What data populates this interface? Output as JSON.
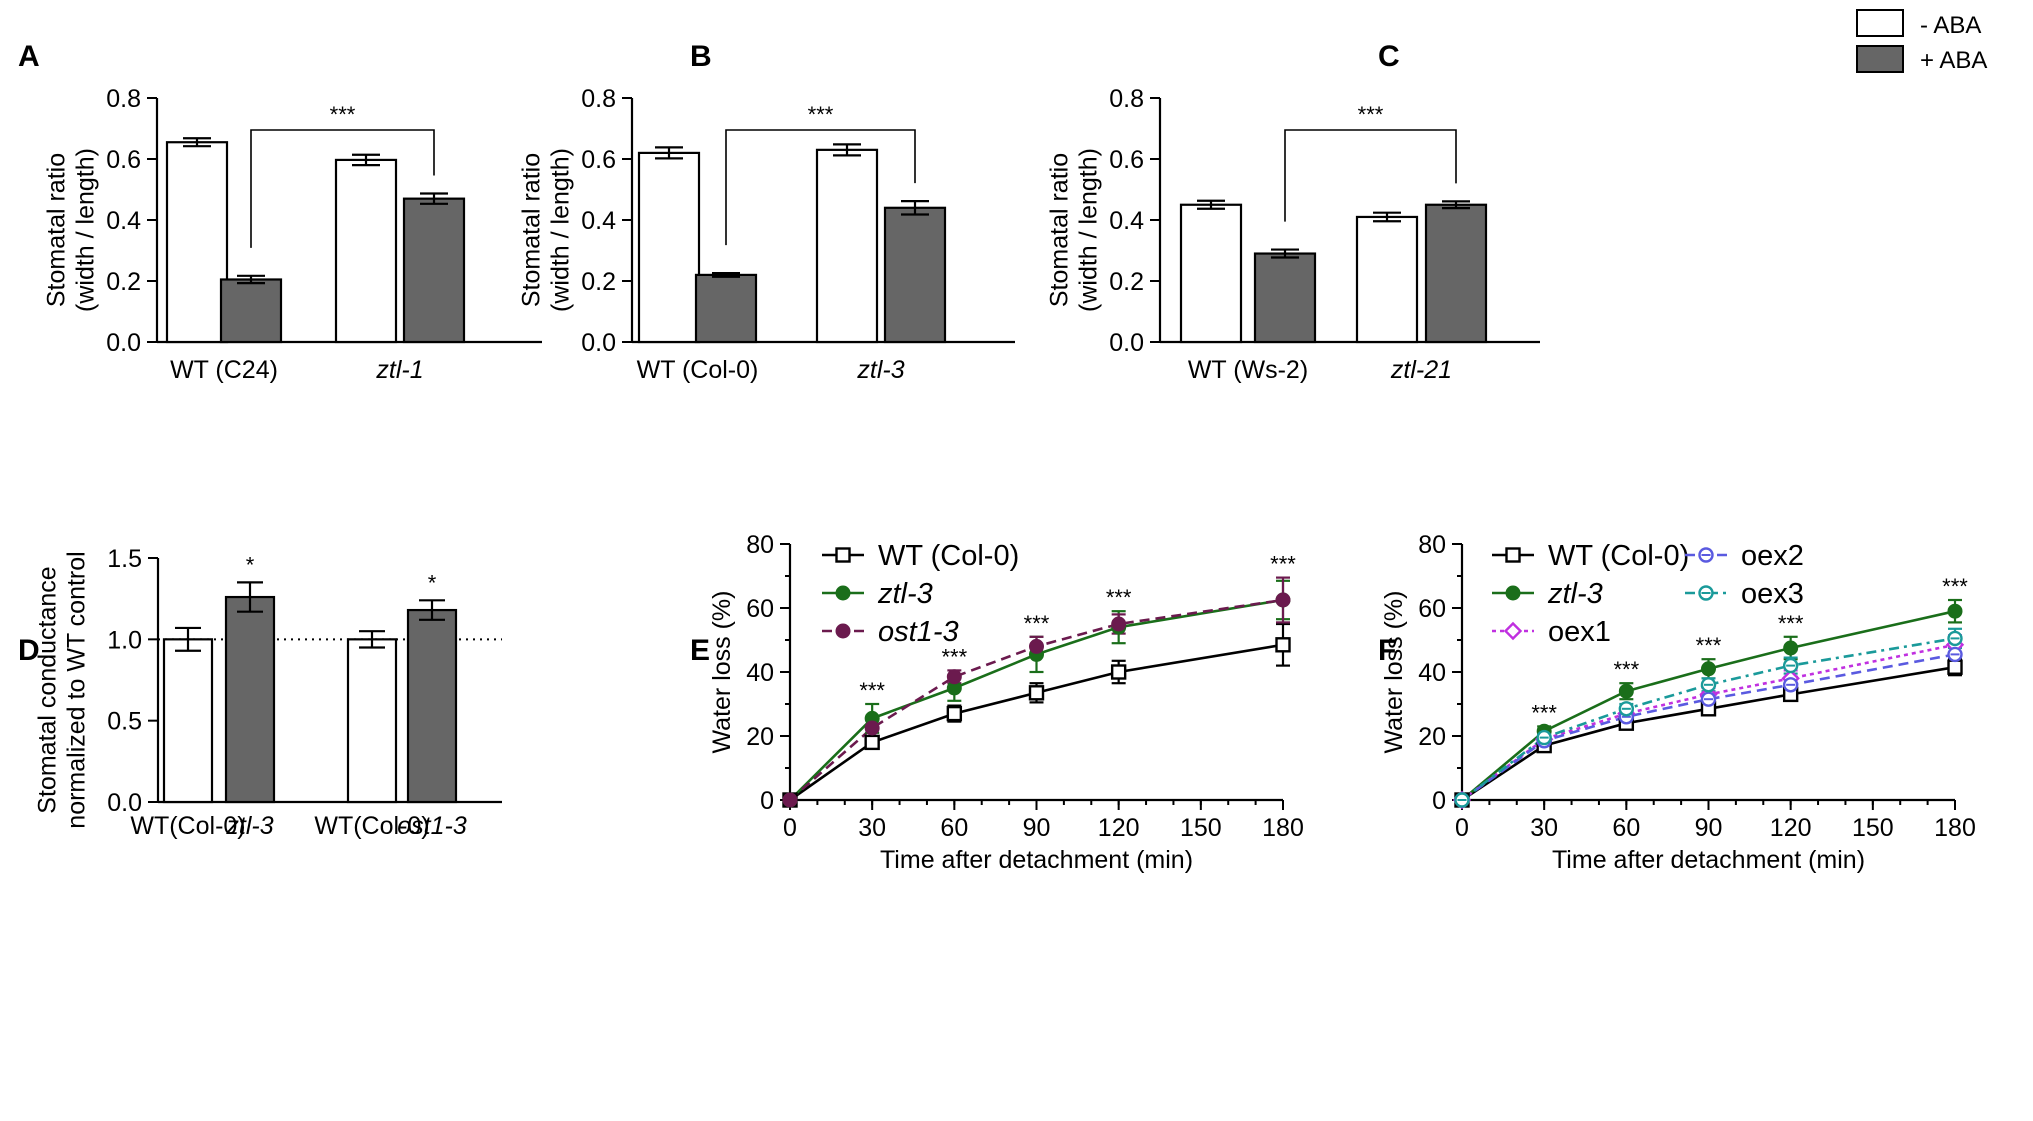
{
  "legend": {
    "minus_aba": "- ABA",
    "plus_aba": "+ ABA",
    "colors": {
      "minus_aba": "#ffffff",
      "plus_aba": "#666666"
    }
  },
  "chart_data": [
    {
      "panel": "A",
      "type": "bar",
      "ylabel_line1": "Stomatal ratio",
      "ylabel_line2": "(width / length)",
      "ylim": [
        0,
        0.8
      ],
      "yticks": [
        "0.0",
        "0.2",
        "0.4",
        "0.6",
        "0.8"
      ],
      "groups": [
        "WT (C24)",
        "ztl-1"
      ],
      "series": [
        {
          "name": "- ABA",
          "values": [
            0.655,
            0.597
          ],
          "errors": [
            0.013,
            0.017
          ]
        },
        {
          "name": "+ ABA",
          "values": [
            0.205,
            0.47
          ],
          "errors": [
            0.012,
            0.017
          ]
        }
      ],
      "significance": "***"
    },
    {
      "panel": "B",
      "type": "bar",
      "ylabel_line1": "Stomatal ratio",
      "ylabel_line2": "(width / length)",
      "ylim": [
        0,
        0.8
      ],
      "yticks": [
        "0.0",
        "0.2",
        "0.4",
        "0.6",
        "0.8"
      ],
      "groups": [
        "WT (Col-0)",
        "ztl-3"
      ],
      "series": [
        {
          "name": "- ABA",
          "values": [
            0.62,
            0.63
          ],
          "errors": [
            0.018,
            0.018
          ]
        },
        {
          "name": "+ ABA",
          "values": [
            0.22,
            0.44
          ],
          "errors": [
            0.006,
            0.022
          ]
        }
      ],
      "significance": "***"
    },
    {
      "panel": "C",
      "type": "bar",
      "ylabel_line1": "Stomatal ratio",
      "ylabel_line2": "(width / length)",
      "ylim": [
        0,
        0.8
      ],
      "yticks": [
        "0.0",
        "0.2",
        "0.4",
        "0.6",
        "0.8"
      ],
      "groups": [
        "WT (Ws-2)",
        "ztl-21"
      ],
      "series": [
        {
          "name": "- ABA",
          "values": [
            0.45,
            0.41
          ],
          "errors": [
            0.013,
            0.014
          ]
        },
        {
          "name": "+ ABA",
          "values": [
            0.29,
            0.45
          ],
          "errors": [
            0.013,
            0.011
          ]
        }
      ],
      "significance": "***"
    },
    {
      "panel": "D",
      "type": "bar",
      "ylabel_line1": "Stomatal conductance",
      "ylabel_line2": "normalized to WT control",
      "ylim": [
        0,
        1.5
      ],
      "yticks": [
        "0.0",
        "0.5",
        "1.0",
        "1.5"
      ],
      "reference_line": 1.0,
      "bars": [
        {
          "label": "WT(Col-0)",
          "value": 1.0,
          "error": 0.07,
          "fill": "white",
          "sig": ""
        },
        {
          "label": "ztl-3",
          "value": 1.26,
          "error": 0.09,
          "fill": "gray",
          "sig": "*"
        },
        {
          "label": "WT(Col-0)",
          "value": 1.0,
          "error": 0.05,
          "fill": "white",
          "sig": ""
        },
        {
          "label": "ost1-3",
          "value": 1.18,
          "error": 0.06,
          "fill": "gray",
          "sig": "*"
        }
      ]
    },
    {
      "panel": "E",
      "type": "line",
      "xlabel": "Time after detachment (min)",
      "ylabel": "Water loss (%)",
      "x": [
        0,
        30,
        60,
        90,
        120,
        180
      ],
      "xlim": [
        0,
        180
      ],
      "ylim": [
        0,
        80
      ],
      "xticks": [
        "0",
        "30",
        "60",
        "90",
        "120",
        "150",
        "180"
      ],
      "yticks": [
        "0",
        "20",
        "40",
        "60",
        "80"
      ],
      "significance_x": [
        30,
        60,
        90,
        120,
        180
      ],
      "significance_label": "***",
      "series": [
        {
          "name": "WT (Col-0)",
          "values": [
            0,
            18,
            27,
            33.5,
            40,
            48.5
          ],
          "errors": [
            0,
            1.2,
            2.5,
            3,
            3.5,
            6.5
          ],
          "color": "#000000",
          "marker": "open-square",
          "dash": ""
        },
        {
          "name": "ztl-3",
          "values": [
            0,
            25.5,
            35,
            45.5,
            54,
            62.5
          ],
          "errors": [
            0,
            4.5,
            4,
            5.5,
            5,
            6
          ],
          "color": "#1a6e1a",
          "marker": "filled-circle",
          "dash": ""
        },
        {
          "name": "ost1-3",
          "values": [
            0,
            22.5,
            38.5,
            48,
            55,
            62.5
          ],
          "errors": [
            0,
            2.5,
            2,
            3,
            3,
            7
          ],
          "color": "#6b1a4e",
          "marker": "filled-circle",
          "dash": "10,6"
        }
      ]
    },
    {
      "panel": "F",
      "type": "line",
      "xlabel": "Time after detachment (min)",
      "ylabel": "Water loss (%)",
      "x": [
        0,
        30,
        60,
        90,
        120,
        180
      ],
      "xlim": [
        0,
        180
      ],
      "ylim": [
        0,
        80
      ],
      "xticks": [
        "0",
        "30",
        "60",
        "90",
        "120",
        "150",
        "180"
      ],
      "yticks": [
        "0",
        "20",
        "40",
        "60",
        "80"
      ],
      "significance_x": [
        30,
        60,
        90,
        120,
        180
      ],
      "significance_label": "***",
      "series": [
        {
          "name": "WT (Col-0)",
          "values": [
            0,
            17,
            24,
            28.5,
            33,
            41.5
          ],
          "errors": [
            0,
            1,
            1.2,
            1.5,
            1.5,
            2.5
          ],
          "color": "#000000",
          "marker": "open-square",
          "dash": ""
        },
        {
          "name": "ztl-3",
          "values": [
            0,
            21.5,
            34,
            41,
            47.5,
            59
          ],
          "errors": [
            0,
            1.5,
            2.5,
            3,
            3.5,
            3.5
          ],
          "color": "#1a6e1a",
          "marker": "filled-circle",
          "dash": ""
        },
        {
          "name": "oex1",
          "values": [
            0,
            19,
            27,
            33,
            38,
            48.5
          ],
          "errors": [
            0,
            1,
            1.5,
            2,
            2.5,
            3
          ],
          "color": "#c030e0",
          "marker": "open-diamond",
          "dash": "4,4"
        },
        {
          "name": "oex2",
          "values": [
            0,
            18.5,
            26,
            31.5,
            36,
            45.5
          ],
          "errors": [
            0,
            1,
            1.5,
            2,
            2.5,
            3
          ],
          "color": "#5a5ae0",
          "marker": "open-circle",
          "dash": "10,6"
        },
        {
          "name": "oex3",
          "values": [
            0,
            19.5,
            28.5,
            36,
            42,
            50.5
          ],
          "errors": [
            0,
            1,
            1.5,
            2,
            2.5,
            3
          ],
          "color": "#1a9a9a",
          "marker": "open-circle",
          "dash": "10,5,3,5"
        }
      ]
    }
  ]
}
